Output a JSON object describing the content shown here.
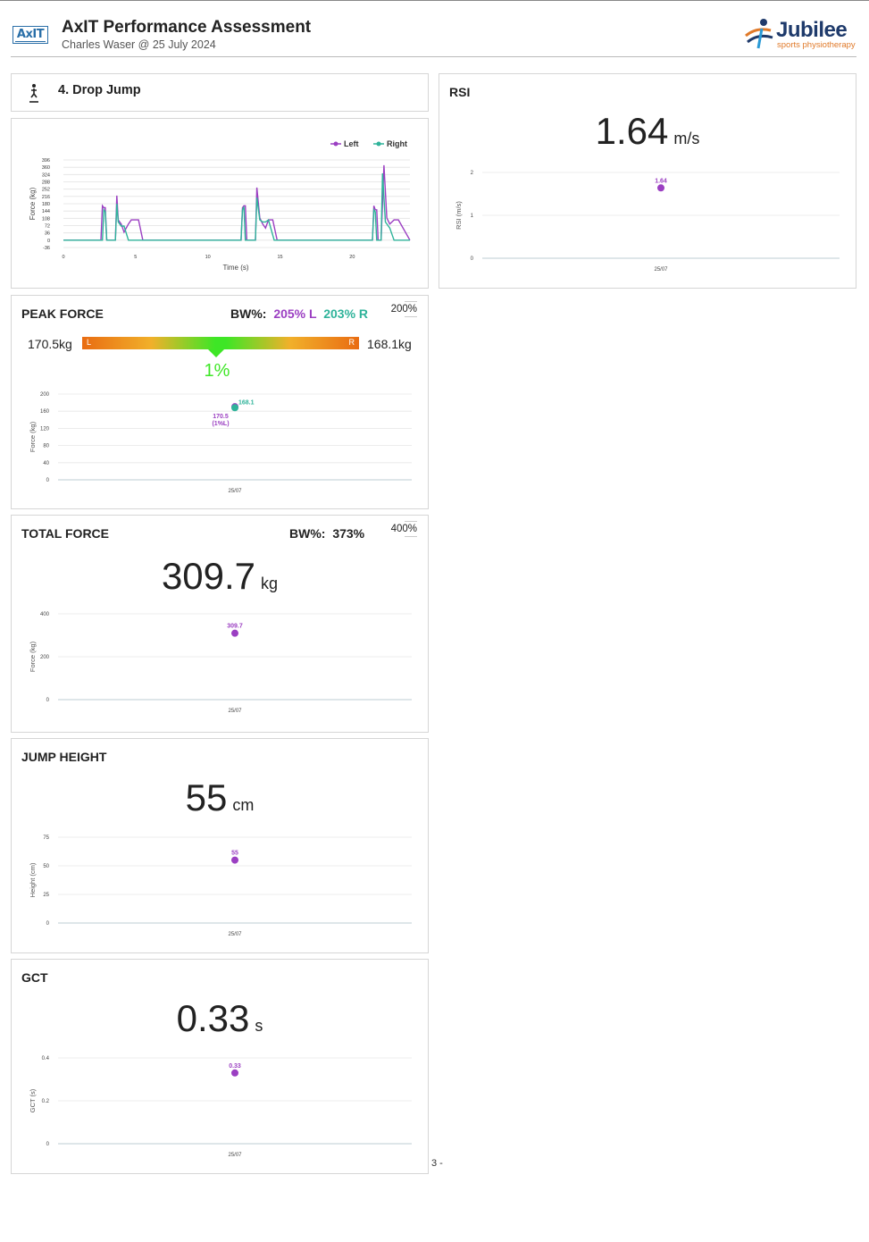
{
  "header": {
    "logo_text": "AxIT",
    "title": "AxIT Performance Assessment",
    "subtitle": "Charles Waser @ 25 July 2024",
    "brand_name": "Jubilee",
    "brand_tagline": "sports physiotherapy"
  },
  "test": {
    "title": "4. Drop Jump",
    "icon": "drop-jump-icon"
  },
  "colors": {
    "left": "#9b3fc2",
    "right": "#2fb39a",
    "gauge_center": "#3ee626",
    "gauge_edge": "#e96c12"
  },
  "trace": {
    "legend": {
      "left": "Left",
      "right": "Right"
    },
    "ylabel": "Force (kg)",
    "xlabel": "Time (s)",
    "y_ticks": [
      "396",
      "360",
      "324",
      "288",
      "252",
      "216",
      "180",
      "144",
      "108",
      "72",
      "36",
      "0",
      "-36"
    ],
    "x_ticks": [
      "0",
      "5",
      "10",
      "15",
      "20"
    ]
  },
  "rsi": {
    "title": "RSI",
    "value": "1.64",
    "unit": "m/s",
    "ylabel": "RSI (m/s)",
    "y_ticks": [
      "2",
      "1",
      "0"
    ],
    "point_label": "1.64",
    "date": "25/07"
  },
  "peak_force": {
    "title": "PEAK FORCE",
    "bw_label": "BW%:",
    "bw_left": "205% L",
    "bw_right": "203% R",
    "target": "200%",
    "left_kg": "170.5kg",
    "right_kg": "168.1kg",
    "gauge_left": "L",
    "gauge_right": "R",
    "asymmetry": "1%",
    "asymmetry_value": 0.01,
    "ylabel": "Force (kg)",
    "y_ticks": [
      "200",
      "160",
      "120",
      "80",
      "40",
      "0"
    ],
    "left_point_label": "170.5",
    "left_point_sub": "(1%L)",
    "right_point_label": "168.1",
    "date": "25/07"
  },
  "total_force": {
    "title": "TOTAL FORCE",
    "bw_label": "BW%:",
    "bw_value": "373%",
    "target": "400%",
    "value": "309.7",
    "unit": "kg",
    "ylabel": "Force (kg)",
    "y_ticks": [
      "400",
      "200",
      "0"
    ],
    "point_label": "309.7",
    "date": "25/07"
  },
  "jump_height": {
    "title": "JUMP HEIGHT",
    "value": "55",
    "unit": "cm",
    "ylabel": "Height (cm)",
    "y_ticks": [
      "75",
      "50",
      "25",
      "0"
    ],
    "point_label": "55",
    "date": "25/07"
  },
  "gct": {
    "title": "GCT",
    "value": "0.33",
    "unit": "s",
    "ylabel": "GCT (s)",
    "y_ticks": [
      "0.4",
      "0.2",
      "0"
    ],
    "point_label": "0.33",
    "date": "25/07"
  },
  "page_number": "3 -",
  "chart_data": [
    {
      "type": "line",
      "xlabel": "Time (s)",
      "ylabel": "Force (kg)",
      "xlim": [
        0,
        24
      ],
      "ylim": [
        -36,
        396
      ],
      "series": [
        {
          "name": "Left",
          "x": [
            0,
            2.6,
            2.7,
            2.8,
            2.9,
            3.0,
            3.6,
            3.7,
            3.8,
            4.0,
            4.2,
            4.5,
            4.7,
            5.0,
            5.2,
            5.5,
            12.3,
            12.4,
            12.5,
            12.6,
            12.7,
            13.3,
            13.4,
            13.6,
            13.8,
            14.0,
            14.2,
            14.5,
            14.8,
            21.4,
            21.5,
            21.6,
            21.7,
            21.8,
            22.0,
            22.2,
            22.4,
            22.6,
            22.9,
            23.2,
            24
          ],
          "y": [
            0,
            0,
            170,
            160,
            160,
            0,
            0,
            220,
            100,
            80,
            40,
            80,
            100,
            100,
            100,
            0,
            0,
            160,
            170,
            170,
            0,
            0,
            260,
            110,
            80,
            60,
            100,
            100,
            0,
            0,
            170,
            150,
            150,
            0,
            0,
            370,
            110,
            80,
            100,
            100,
            0
          ]
        },
        {
          "name": "Right",
          "x": [
            0,
            2.7,
            2.8,
            2.9,
            3.0,
            3.6,
            3.7,
            3.8,
            4.0,
            4.2,
            4.5,
            4.8,
            12.3,
            12.4,
            12.5,
            12.6,
            13.3,
            13.4,
            13.6,
            13.8,
            14.0,
            14.2,
            14.6,
            14.9,
            21.4,
            21.5,
            21.6,
            21.7,
            22.0,
            22.1,
            22.3,
            22.6,
            22.9,
            24
          ],
          "y": [
            0,
            0,
            150,
            140,
            0,
            0,
            180,
            90,
            70,
            70,
            0,
            0,
            0,
            150,
            165,
            0,
            0,
            210,
            100,
            90,
            90,
            100,
            0,
            0,
            0,
            150,
            140,
            0,
            0,
            330,
            90,
            60,
            0,
            0
          ]
        }
      ]
    },
    {
      "type": "scatter",
      "title": "RSI",
      "ylabel": "RSI (m/s)",
      "ylim": [
        0,
        2
      ],
      "categories": [
        "25/07"
      ],
      "values": [
        1.64
      ]
    },
    {
      "type": "scatter",
      "title": "PEAK FORCE",
      "ylabel": "Force (kg)",
      "ylim": [
        0,
        200
      ],
      "categories": [
        "25/07"
      ],
      "series": [
        {
          "name": "Left",
          "values": [
            170.5
          ]
        },
        {
          "name": "Right",
          "values": [
            168.1
          ]
        }
      ]
    },
    {
      "type": "scatter",
      "title": "TOTAL FORCE",
      "ylabel": "Force (kg)",
      "ylim": [
        0,
        400
      ],
      "categories": [
        "25/07"
      ],
      "values": [
        309.7
      ]
    },
    {
      "type": "scatter",
      "title": "JUMP HEIGHT",
      "ylabel": "Height (cm)",
      "ylim": [
        0,
        75
      ],
      "categories": [
        "25/07"
      ],
      "values": [
        55
      ]
    },
    {
      "type": "scatter",
      "title": "GCT",
      "ylabel": "GCT (s)",
      "ylim": [
        0,
        0.4
      ],
      "categories": [
        "25/07"
      ],
      "values": [
        0.33
      ]
    }
  ]
}
